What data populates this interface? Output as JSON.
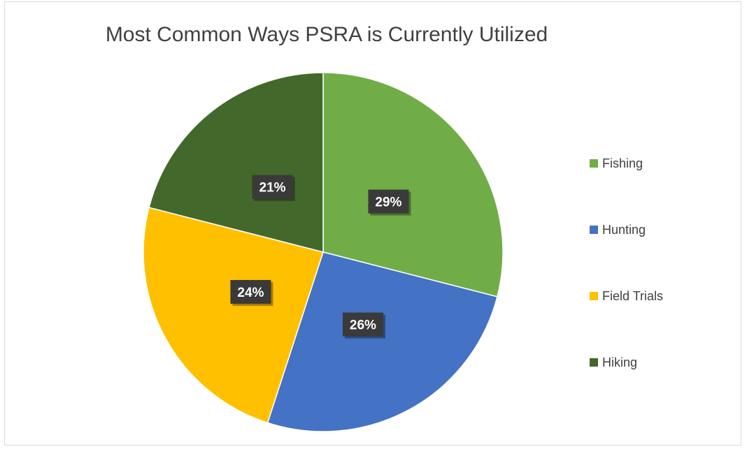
{
  "chart_data": {
    "type": "pie",
    "title": "Most Common Ways PSRA is Currently Utilized",
    "categories": [
      "Fishing",
      "Hunting",
      "Field Trials",
      "Hiking"
    ],
    "values": [
      29,
      26,
      24,
      21
    ],
    "data_labels": [
      "29%",
      "26%",
      "24%",
      "21%"
    ],
    "colors": [
      "#70ad47",
      "#4472c4",
      "#ffc000",
      "#43682b"
    ],
    "legend_position": "right",
    "start_angle": "12 o'clock, clockwise"
  }
}
